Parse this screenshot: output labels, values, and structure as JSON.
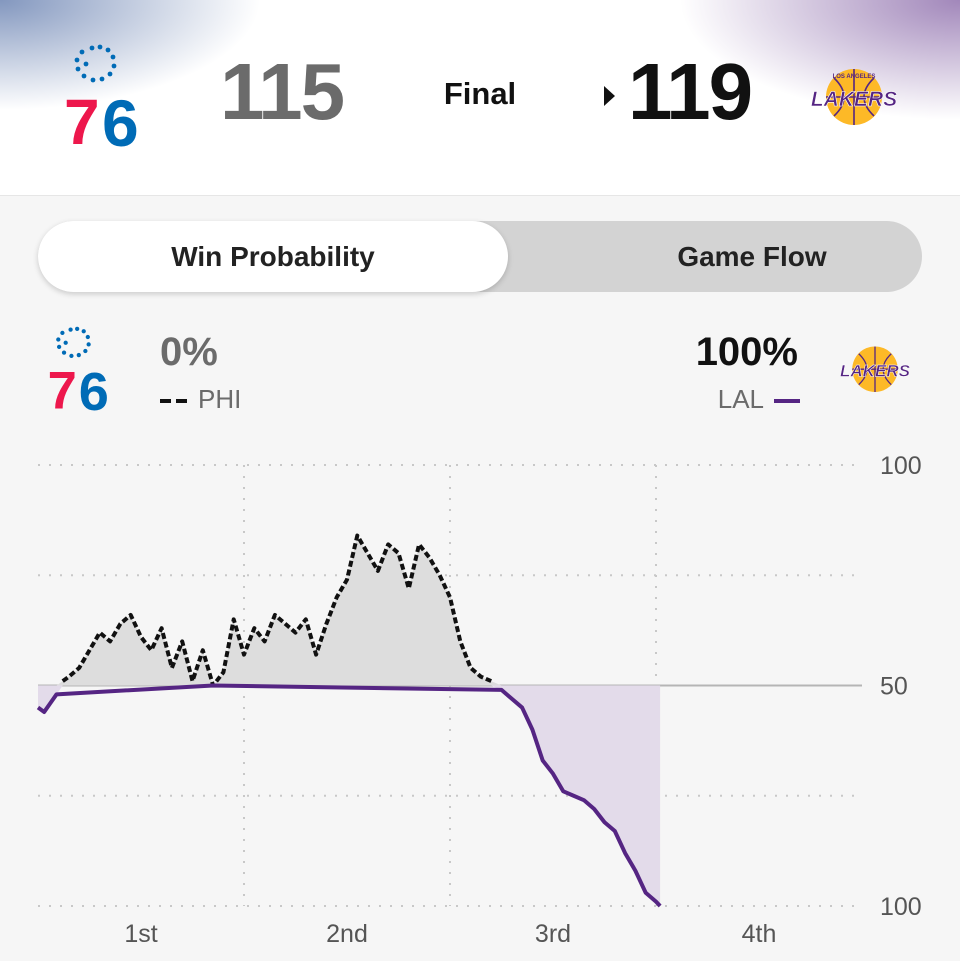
{
  "scoreboard": {
    "away": {
      "abbr": "PHI",
      "score": "115",
      "logo_text": "76"
    },
    "home": {
      "abbr": "LAL",
      "score": "119",
      "logo_text": "LAKERS"
    },
    "status": "Final",
    "winner_icon": "caret-right-icon"
  },
  "tabs": {
    "win_probability": "Win Probability",
    "game_flow": "Game Flow",
    "active": "win_probability"
  },
  "legend": {
    "phi": {
      "pct": "0%",
      "label": "PHI"
    },
    "lal": {
      "pct": "100%",
      "label": "LAL"
    }
  },
  "colors": {
    "phi_red": "#ED174C",
    "phi_blue": "#006BB6",
    "lal_purple": "#552583",
    "lal_gold": "#FDB927",
    "phi_fill": "#dddddd",
    "lal_fill": "#e3dbea"
  },
  "chart_data": {
    "type": "line",
    "title": "",
    "xlabel": "",
    "ylabel": "",
    "x_unit": "quarter",
    "xlim": [
      0,
      4
    ],
    "ylim": [
      0,
      100
    ],
    "y_ticks": [
      "100",
      "50",
      "100"
    ],
    "y_tick_values": [
      100,
      50,
      0
    ],
    "quarter_labels": [
      "1st",
      "2nd",
      "3rd",
      "4th"
    ],
    "grid": true,
    "midline": 50,
    "series": [
      {
        "name": "PHI",
        "style": "dashed",
        "description": "PHI win probability",
        "x": [
          0,
          0.03,
          0.06,
          0.09,
          0.12,
          0.15,
          0.2,
          0.25,
          0.3,
          0.35,
          0.4,
          0.45,
          0.5,
          0.55,
          0.6,
          0.65,
          0.7,
          0.75,
          0.8,
          0.85,
          0.9,
          0.95,
          1.0,
          1.05,
          1.1,
          1.15,
          1.2,
          1.25,
          1.3,
          1.35,
          1.4,
          1.45,
          1.5,
          1.55,
          1.6,
          1.65,
          1.7,
          1.75,
          1.8,
          1.85,
          1.9,
          1.95,
          2.0,
          2.05,
          2.1,
          2.15,
          2.2,
          2.25,
          2.3,
          2.35,
          2.4,
          2.45,
          2.5,
          2.55,
          2.6,
          2.65,
          2.7,
          2.75,
          2.8,
          2.85,
          2.9,
          2.95,
          3.0,
          3.02
        ],
        "y": [
          45,
          44,
          46,
          48,
          51,
          52,
          54,
          58,
          62,
          60,
          64,
          66,
          61,
          58,
          63,
          54,
          60,
          51,
          58,
          50,
          53,
          65,
          57,
          63,
          60,
          66,
          64,
          62,
          65,
          57,
          64,
          70,
          74,
          84,
          80,
          76,
          82,
          80,
          72,
          82,
          79,
          75,
          70,
          60,
          54,
          52,
          51,
          49,
          47,
          45,
          40,
          33,
          30,
          26,
          25,
          24,
          22,
          19,
          17,
          12,
          8,
          3,
          1,
          0
        ]
      },
      {
        "name": "LAL",
        "style": "solid",
        "description": "LAL win probability",
        "x": [
          0,
          0.03,
          0.06,
          0.09,
          0.12,
          0.15,
          0.2,
          0.25,
          0.3,
          0.35,
          0.4,
          0.45,
          0.5,
          0.55,
          0.6,
          0.65,
          0.7,
          0.75,
          0.8,
          0.85,
          0.9,
          0.95,
          1.0,
          1.05,
          1.1,
          1.15,
          1.2,
          1.25,
          1.3,
          1.35,
          1.4,
          1.45,
          1.5,
          1.55,
          1.6,
          1.65,
          1.7,
          1.75,
          1.8,
          1.85,
          1.9,
          1.95,
          2.0,
          2.05,
          2.1,
          2.15,
          2.2,
          2.25,
          2.3,
          2.35,
          2.4,
          2.45,
          2.5,
          2.55,
          2.6,
          2.65,
          2.7,
          2.75,
          2.8,
          2.85,
          2.9,
          2.95,
          3.0,
          3.02
        ],
        "y": [
          55,
          56,
          54,
          52,
          49,
          48,
          46,
          42,
          38,
          40,
          36,
          34,
          39,
          42,
          37,
          46,
          40,
          49,
          42,
          50,
          47,
          35,
          43,
          37,
          40,
          34,
          36,
          38,
          35,
          43,
          36,
          30,
          26,
          16,
          20,
          24,
          18,
          20,
          28,
          18,
          21,
          25,
          30,
          40,
          46,
          48,
          49,
          51,
          53,
          55,
          60,
          67,
          70,
          74,
          75,
          76,
          78,
          81,
          83,
          88,
          92,
          97,
          99,
          100
        ]
      }
    ]
  }
}
